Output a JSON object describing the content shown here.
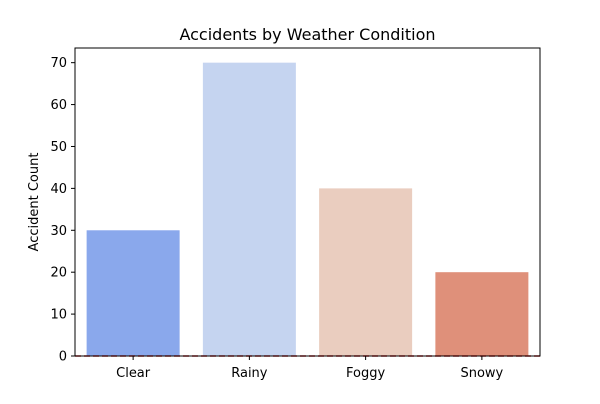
{
  "chart_data": {
    "type": "bar",
    "title": "Accidents by Weather Condition",
    "xlabel": "",
    "ylabel": "Accident Count",
    "categories": [
      "Clear",
      "Rainy",
      "Foggy",
      "Snowy"
    ],
    "values": [
      30,
      70,
      40,
      20
    ],
    "bar_colors": [
      "#8aa8ec",
      "#c5d4f0",
      "#eacdbf",
      "#df907a"
    ],
    "ylim": [
      0,
      73.5
    ],
    "yticks": [
      0,
      10,
      20,
      30,
      40,
      50,
      60,
      70
    ],
    "grid": false,
    "reference_line": {
      "y": 0,
      "style": "dashed",
      "color": "#d62728"
    }
  }
}
